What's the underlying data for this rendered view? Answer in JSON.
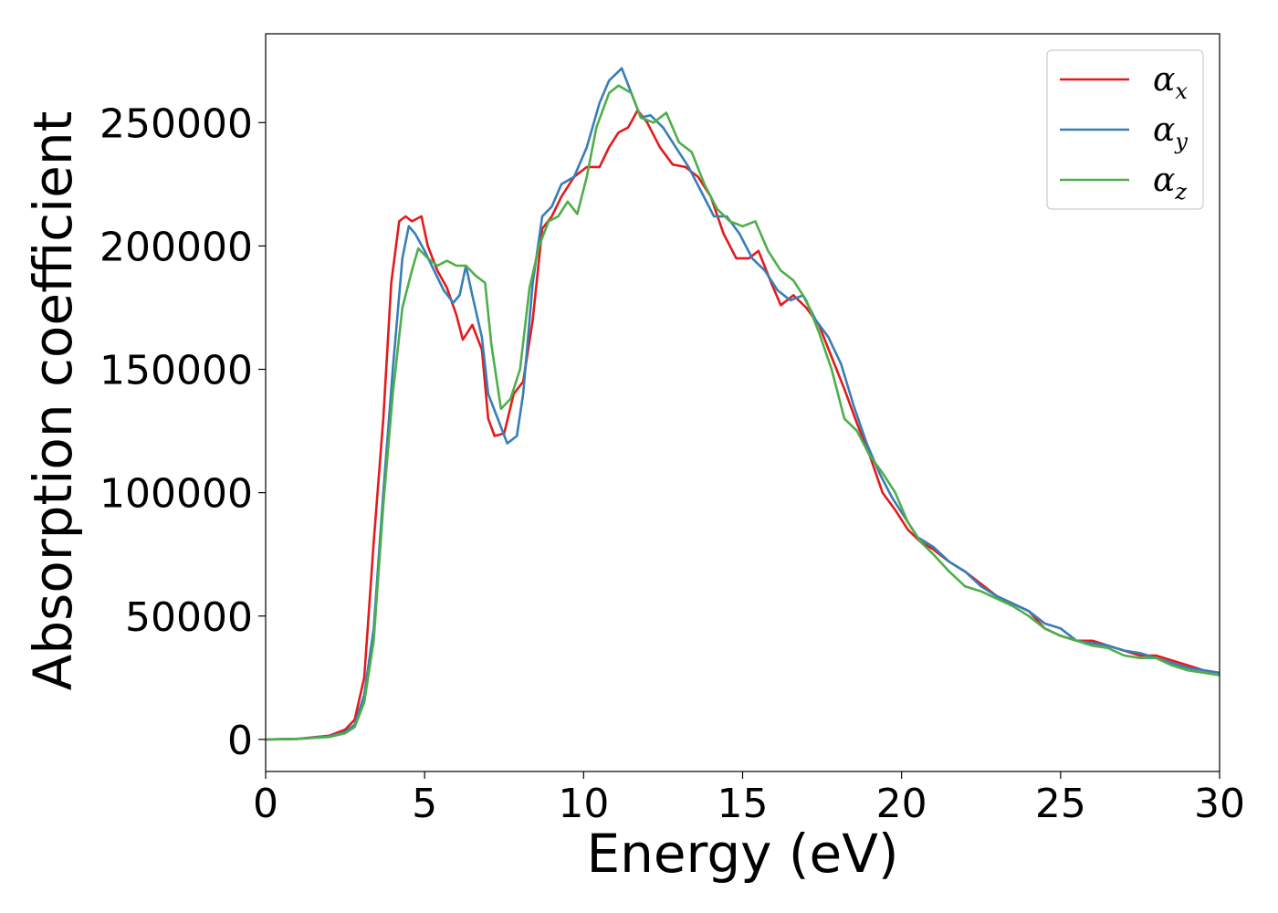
{
  "chart_data": {
    "type": "line",
    "xlabel": "Energy (eV)",
    "ylabel": "Absorption coefficient",
    "xlim": [
      0,
      30
    ],
    "ylim": [
      -13000,
      286000
    ],
    "xticks": [
      0,
      5,
      10,
      15,
      20,
      25,
      30
    ],
    "yticks": [
      0,
      50000,
      100000,
      150000,
      200000,
      250000
    ],
    "grid": false,
    "legend_position": "top-right",
    "series": [
      {
        "name": "α",
        "subscript": "x",
        "color": "#e41a1c",
        "points": [
          [
            0,
            0
          ],
          [
            1,
            200
          ],
          [
            2,
            1500
          ],
          [
            2.5,
            4000
          ],
          [
            2.8,
            8000
          ],
          [
            3.1,
            25000
          ],
          [
            3.4,
            80000
          ],
          [
            3.7,
            130000
          ],
          [
            3.95,
            185000
          ],
          [
            4.2,
            210000
          ],
          [
            4.4,
            212000
          ],
          [
            4.6,
            210000
          ],
          [
            4.9,
            212000
          ],
          [
            5.1,
            200000
          ],
          [
            5.4,
            190000
          ],
          [
            5.7,
            183000
          ],
          [
            6.0,
            172000
          ],
          [
            6.2,
            162000
          ],
          [
            6.5,
            168000
          ],
          [
            6.8,
            158000
          ],
          [
            7.0,
            130000
          ],
          [
            7.2,
            123000
          ],
          [
            7.5,
            124000
          ],
          [
            7.8,
            140000
          ],
          [
            8.1,
            145000
          ],
          [
            8.4,
            170000
          ],
          [
            8.7,
            207000
          ],
          [
            9.0,
            212000
          ],
          [
            9.3,
            220000
          ],
          [
            9.7,
            228000
          ],
          [
            10.1,
            232000
          ],
          [
            10.5,
            232000
          ],
          [
            10.8,
            240000
          ],
          [
            11.1,
            246000
          ],
          [
            11.4,
            248000
          ],
          [
            11.7,
            255000
          ],
          [
            12.0,
            250000
          ],
          [
            12.4,
            240000
          ],
          [
            12.8,
            233000
          ],
          [
            13.2,
            232000
          ],
          [
            13.6,
            228000
          ],
          [
            14.0,
            220000
          ],
          [
            14.4,
            205000
          ],
          [
            14.8,
            195000
          ],
          [
            15.2,
            195000
          ],
          [
            15.5,
            198000
          ],
          [
            15.9,
            185000
          ],
          [
            16.2,
            176000
          ],
          [
            16.6,
            180000
          ],
          [
            17.0,
            175000
          ],
          [
            17.4,
            168000
          ],
          [
            17.8,
            155000
          ],
          [
            18.2,
            142000
          ],
          [
            18.6,
            128000
          ],
          [
            19.0,
            115000
          ],
          [
            19.4,
            100000
          ],
          [
            19.8,
            93000
          ],
          [
            20.2,
            85000
          ],
          [
            20.6,
            80000
          ],
          [
            21.0,
            77000
          ],
          [
            21.5,
            72000
          ],
          [
            22.0,
            68000
          ],
          [
            22.5,
            63000
          ],
          [
            23.0,
            58000
          ],
          [
            23.5,
            55000
          ],
          [
            24.0,
            52000
          ],
          [
            24.5,
            45000
          ],
          [
            25.0,
            42000
          ],
          [
            25.5,
            40000
          ],
          [
            26.0,
            40000
          ],
          [
            26.5,
            38000
          ],
          [
            27.0,
            36000
          ],
          [
            27.5,
            34000
          ],
          [
            28.0,
            34000
          ],
          [
            28.5,
            32000
          ],
          [
            29.0,
            30000
          ],
          [
            29.5,
            28000
          ],
          [
            30.0,
            27000
          ]
        ]
      },
      {
        "name": "α",
        "subscript": "y",
        "color": "#377eb8",
        "points": [
          [
            0,
            0
          ],
          [
            1,
            200
          ],
          [
            2,
            1200
          ],
          [
            2.5,
            3000
          ],
          [
            2.8,
            6000
          ],
          [
            3.1,
            18000
          ],
          [
            3.4,
            45000
          ],
          [
            3.7,
            100000
          ],
          [
            4.0,
            150000
          ],
          [
            4.3,
            195000
          ],
          [
            4.5,
            208000
          ],
          [
            4.7,
            205000
          ],
          [
            5.0,
            198000
          ],
          [
            5.3,
            190000
          ],
          [
            5.6,
            182000
          ],
          [
            5.9,
            177000
          ],
          [
            6.1,
            180000
          ],
          [
            6.3,
            192000
          ],
          [
            6.5,
            180000
          ],
          [
            6.8,
            163000
          ],
          [
            7.0,
            140000
          ],
          [
            7.3,
            130000
          ],
          [
            7.6,
            120000
          ],
          [
            7.9,
            123000
          ],
          [
            8.1,
            140000
          ],
          [
            8.4,
            185000
          ],
          [
            8.7,
            212000
          ],
          [
            9.0,
            216000
          ],
          [
            9.3,
            225000
          ],
          [
            9.7,
            228000
          ],
          [
            10.1,
            240000
          ],
          [
            10.5,
            258000
          ],
          [
            10.8,
            267000
          ],
          [
            11.2,
            272000
          ],
          [
            11.5,
            262000
          ],
          [
            11.8,
            252000
          ],
          [
            12.1,
            253000
          ],
          [
            12.5,
            248000
          ],
          [
            12.9,
            240000
          ],
          [
            13.3,
            232000
          ],
          [
            13.7,
            222000
          ],
          [
            14.1,
            212000
          ],
          [
            14.5,
            212000
          ],
          [
            14.9,
            205000
          ],
          [
            15.3,
            195000
          ],
          [
            15.7,
            190000
          ],
          [
            16.1,
            182000
          ],
          [
            16.5,
            178000
          ],
          [
            16.9,
            180000
          ],
          [
            17.3,
            170000
          ],
          [
            17.7,
            163000
          ],
          [
            18.1,
            152000
          ],
          [
            18.5,
            135000
          ],
          [
            18.9,
            120000
          ],
          [
            19.3,
            108000
          ],
          [
            19.7,
            98000
          ],
          [
            20.1,
            90000
          ],
          [
            20.5,
            82000
          ],
          [
            21.0,
            78000
          ],
          [
            21.5,
            72000
          ],
          [
            22.0,
            68000
          ],
          [
            22.5,
            62000
          ],
          [
            23.0,
            58000
          ],
          [
            23.5,
            55000
          ],
          [
            24.0,
            52000
          ],
          [
            24.5,
            47000
          ],
          [
            25.0,
            45000
          ],
          [
            25.5,
            40000
          ],
          [
            26.0,
            39000
          ],
          [
            26.5,
            38000
          ],
          [
            27.0,
            36000
          ],
          [
            27.5,
            35000
          ],
          [
            28.0,
            33000
          ],
          [
            28.5,
            31000
          ],
          [
            29.0,
            29000
          ],
          [
            29.5,
            28000
          ],
          [
            30.0,
            27000
          ]
        ]
      },
      {
        "name": "α",
        "subscript": "z",
        "color": "#4daf4a",
        "points": [
          [
            0,
            0
          ],
          [
            1,
            200
          ],
          [
            2,
            1000
          ],
          [
            2.5,
            2500
          ],
          [
            2.8,
            5000
          ],
          [
            3.1,
            15000
          ],
          [
            3.4,
            40000
          ],
          [
            3.7,
            95000
          ],
          [
            4.0,
            140000
          ],
          [
            4.3,
            175000
          ],
          [
            4.6,
            190000
          ],
          [
            4.8,
            199000
          ],
          [
            5.1,
            195000
          ],
          [
            5.4,
            192000
          ],
          [
            5.7,
            194000
          ],
          [
            6.0,
            192000
          ],
          [
            6.3,
            192000
          ],
          [
            6.6,
            188000
          ],
          [
            6.9,
            185000
          ],
          [
            7.1,
            160000
          ],
          [
            7.4,
            134000
          ],
          [
            7.7,
            138000
          ],
          [
            8.0,
            150000
          ],
          [
            8.3,
            183000
          ],
          [
            8.6,
            200000
          ],
          [
            8.9,
            210000
          ],
          [
            9.2,
            212000
          ],
          [
            9.5,
            218000
          ],
          [
            9.8,
            213000
          ],
          [
            10.1,
            228000
          ],
          [
            10.4,
            248000
          ],
          [
            10.8,
            262000
          ],
          [
            11.1,
            265000
          ],
          [
            11.5,
            262000
          ],
          [
            11.8,
            252000
          ],
          [
            12.2,
            250000
          ],
          [
            12.6,
            254000
          ],
          [
            13.0,
            242000
          ],
          [
            13.4,
            238000
          ],
          [
            13.8,
            225000
          ],
          [
            14.2,
            215000
          ],
          [
            14.6,
            210000
          ],
          [
            15.0,
            208000
          ],
          [
            15.4,
            210000
          ],
          [
            15.8,
            198000
          ],
          [
            16.2,
            190000
          ],
          [
            16.6,
            186000
          ],
          [
            17.0,
            178000
          ],
          [
            17.4,
            165000
          ],
          [
            17.8,
            150000
          ],
          [
            18.2,
            130000
          ],
          [
            18.6,
            125000
          ],
          [
            19.0,
            115000
          ],
          [
            19.4,
            108000
          ],
          [
            19.8,
            100000
          ],
          [
            20.2,
            88000
          ],
          [
            20.6,
            80000
          ],
          [
            21.0,
            75000
          ],
          [
            21.5,
            68000
          ],
          [
            22.0,
            62000
          ],
          [
            22.5,
            60000
          ],
          [
            23.0,
            57000
          ],
          [
            23.5,
            54000
          ],
          [
            24.0,
            50000
          ],
          [
            24.5,
            45000
          ],
          [
            25.0,
            42000
          ],
          [
            25.5,
            40000
          ],
          [
            26.0,
            38000
          ],
          [
            26.5,
            37000
          ],
          [
            27.0,
            34000
          ],
          [
            27.5,
            33000
          ],
          [
            28.0,
            33000
          ],
          [
            28.5,
            30000
          ],
          [
            29.0,
            28000
          ],
          [
            29.5,
            27000
          ],
          [
            30.0,
            26000
          ]
        ]
      }
    ]
  }
}
